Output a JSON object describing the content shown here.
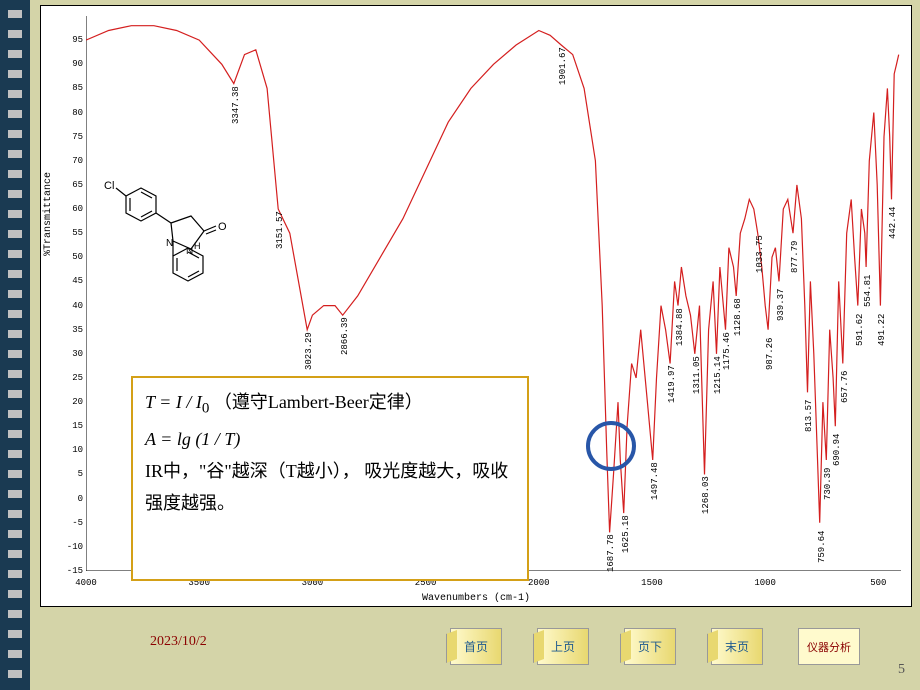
{
  "chart": {
    "type": "line",
    "ylabel": "%Transmittance",
    "xlabel": "Wavenumbers (cm-1)",
    "xlim": [
      4000,
      400
    ],
    "ylim": [
      -15,
      100
    ],
    "yticks": [
      -15,
      -10,
      -5,
      0,
      5,
      10,
      15,
      20,
      25,
      30,
      35,
      40,
      45,
      50,
      55,
      60,
      65,
      70,
      75,
      80,
      85,
      90,
      95
    ],
    "xticks": [
      4000,
      3500,
      3000,
      2500,
      2000,
      1500,
      1000,
      500
    ],
    "line_color": "#d41f1f",
    "axis_color": "#000000",
    "background": "#ffffff",
    "peaks": [
      {
        "wn": 3347.38,
        "t": 86
      },
      {
        "wn": 3151.57,
        "t": 60
      },
      {
        "wn": 3023.29,
        "t": 35
      },
      {
        "wn": 2866.39,
        "t": 38
      },
      {
        "wn": 1901.67,
        "t": 94
      },
      {
        "wn": 1687.78,
        "t": -7
      },
      {
        "wn": 1625.18,
        "t": -3
      },
      {
        "wn": 1497.48,
        "t": 8
      },
      {
        "wn": 1419.97,
        "t": 28
      },
      {
        "wn": 1384.88,
        "t": 40
      },
      {
        "wn": 1311.05,
        "t": 30
      },
      {
        "wn": 1268.03,
        "t": 5
      },
      {
        "wn": 1215.14,
        "t": 30
      },
      {
        "wn": 1175.46,
        "t": 35
      },
      {
        "wn": 1128.68,
        "t": 42
      },
      {
        "wn": 1033.75,
        "t": 55
      },
      {
        "wn": 987.26,
        "t": 35
      },
      {
        "wn": 939.37,
        "t": 45
      },
      {
        "wn": 877.79,
        "t": 55
      },
      {
        "wn": 813.57,
        "t": 22
      },
      {
        "wn": 759.64,
        "t": -5
      },
      {
        "wn": 730.39,
        "t": 8
      },
      {
        "wn": 690.94,
        "t": 15
      },
      {
        "wn": 657.76,
        "t": 28
      },
      {
        "wn": 591.62,
        "t": 40
      },
      {
        "wn": 554.81,
        "t": 48
      },
      {
        "wn": 491.22,
        "t": 40
      },
      {
        "wn": 442.44,
        "t": 62
      }
    ],
    "spectrum": [
      [
        4000,
        95
      ],
      [
        3900,
        97
      ],
      [
        3800,
        98
      ],
      [
        3700,
        98
      ],
      [
        3600,
        97
      ],
      [
        3500,
        95
      ],
      [
        3400,
        90
      ],
      [
        3347,
        86
      ],
      [
        3300,
        92
      ],
      [
        3250,
        93
      ],
      [
        3200,
        85
      ],
      [
        3151,
        60
      ],
      [
        3100,
        55
      ],
      [
        3050,
        42
      ],
      [
        3023,
        35
      ],
      [
        3000,
        38
      ],
      [
        2950,
        40
      ],
      [
        2900,
        40
      ],
      [
        2866,
        38
      ],
      [
        2800,
        42
      ],
      [
        2700,
        50
      ],
      [
        2600,
        58
      ],
      [
        2500,
        68
      ],
      [
        2400,
        78
      ],
      [
        2300,
        85
      ],
      [
        2200,
        90
      ],
      [
        2100,
        94
      ],
      [
        2000,
        97
      ],
      [
        1950,
        96
      ],
      [
        1901,
        94
      ],
      [
        1850,
        92
      ],
      [
        1800,
        85
      ],
      [
        1750,
        70
      ],
      [
        1720,
        40
      ],
      [
        1700,
        10
      ],
      [
        1687,
        -7
      ],
      [
        1670,
        5
      ],
      [
        1650,
        20
      ],
      [
        1640,
        8
      ],
      [
        1625,
        -3
      ],
      [
        1610,
        15
      ],
      [
        1590,
        28
      ],
      [
        1570,
        25
      ],
      [
        1550,
        35
      ],
      [
        1520,
        20
      ],
      [
        1497,
        8
      ],
      [
        1480,
        25
      ],
      [
        1460,
        40
      ],
      [
        1440,
        35
      ],
      [
        1420,
        28
      ],
      [
        1400,
        45
      ],
      [
        1385,
        40
      ],
      [
        1370,
        48
      ],
      [
        1350,
        42
      ],
      [
        1330,
        38
      ],
      [
        1311,
        30
      ],
      [
        1290,
        40
      ],
      [
        1268,
        5
      ],
      [
        1250,
        35
      ],
      [
        1230,
        45
      ],
      [
        1215,
        30
      ],
      [
        1200,
        48
      ],
      [
        1175,
        35
      ],
      [
        1160,
        52
      ],
      [
        1140,
        48
      ],
      [
        1128,
        42
      ],
      [
        1110,
        55
      ],
      [
        1090,
        58
      ],
      [
        1070,
        62
      ],
      [
        1050,
        60
      ],
      [
        1033,
        55
      ],
      [
        1015,
        48
      ],
      [
        1000,
        40
      ],
      [
        987,
        35
      ],
      [
        970,
        50
      ],
      [
        955,
        52
      ],
      [
        939,
        45
      ],
      [
        920,
        60
      ],
      [
        900,
        62
      ],
      [
        877,
        55
      ],
      [
        860,
        65
      ],
      [
        840,
        58
      ],
      [
        825,
        40
      ],
      [
        813,
        22
      ],
      [
        800,
        45
      ],
      [
        785,
        30
      ],
      [
        770,
        10
      ],
      [
        759,
        -5
      ],
      [
        745,
        20
      ],
      [
        730,
        8
      ],
      [
        715,
        35
      ],
      [
        700,
        25
      ],
      [
        690,
        15
      ],
      [
        675,
        45
      ],
      [
        657,
        28
      ],
      [
        640,
        55
      ],
      [
        620,
        62
      ],
      [
        605,
        50
      ],
      [
        591,
        40
      ],
      [
        575,
        60
      ],
      [
        560,
        55
      ],
      [
        554,
        48
      ],
      [
        540,
        70
      ],
      [
        520,
        80
      ],
      [
        505,
        65
      ],
      [
        491,
        40
      ],
      [
        475,
        75
      ],
      [
        460,
        85
      ],
      [
        450,
        75
      ],
      [
        442,
        62
      ],
      [
        430,
        88
      ],
      [
        420,
        90
      ],
      [
        410,
        92
      ]
    ]
  },
  "textbox": {
    "line1_pre": "T = I / I",
    "line1_sub": "0",
    "line1_post": " （遵守Lambert-Beer定律）",
    "line2": "A = lg (1 / T)",
    "line3": "IR中，\"谷\"越深（T越小）， 吸光度越大，吸收强度越强。"
  },
  "molecule": {
    "label_cl": "Cl",
    "label_o": "O",
    "label_n": "N",
    "label_h": "H"
  },
  "circle_color": "#2856a8",
  "date": "2023/10/2",
  "nav": {
    "first": "首页",
    "prev": "上页",
    "next": "页下",
    "last": "末页",
    "analyze": "仪器分析"
  },
  "page_number": "5",
  "page_bg": "#d4d4a8"
}
